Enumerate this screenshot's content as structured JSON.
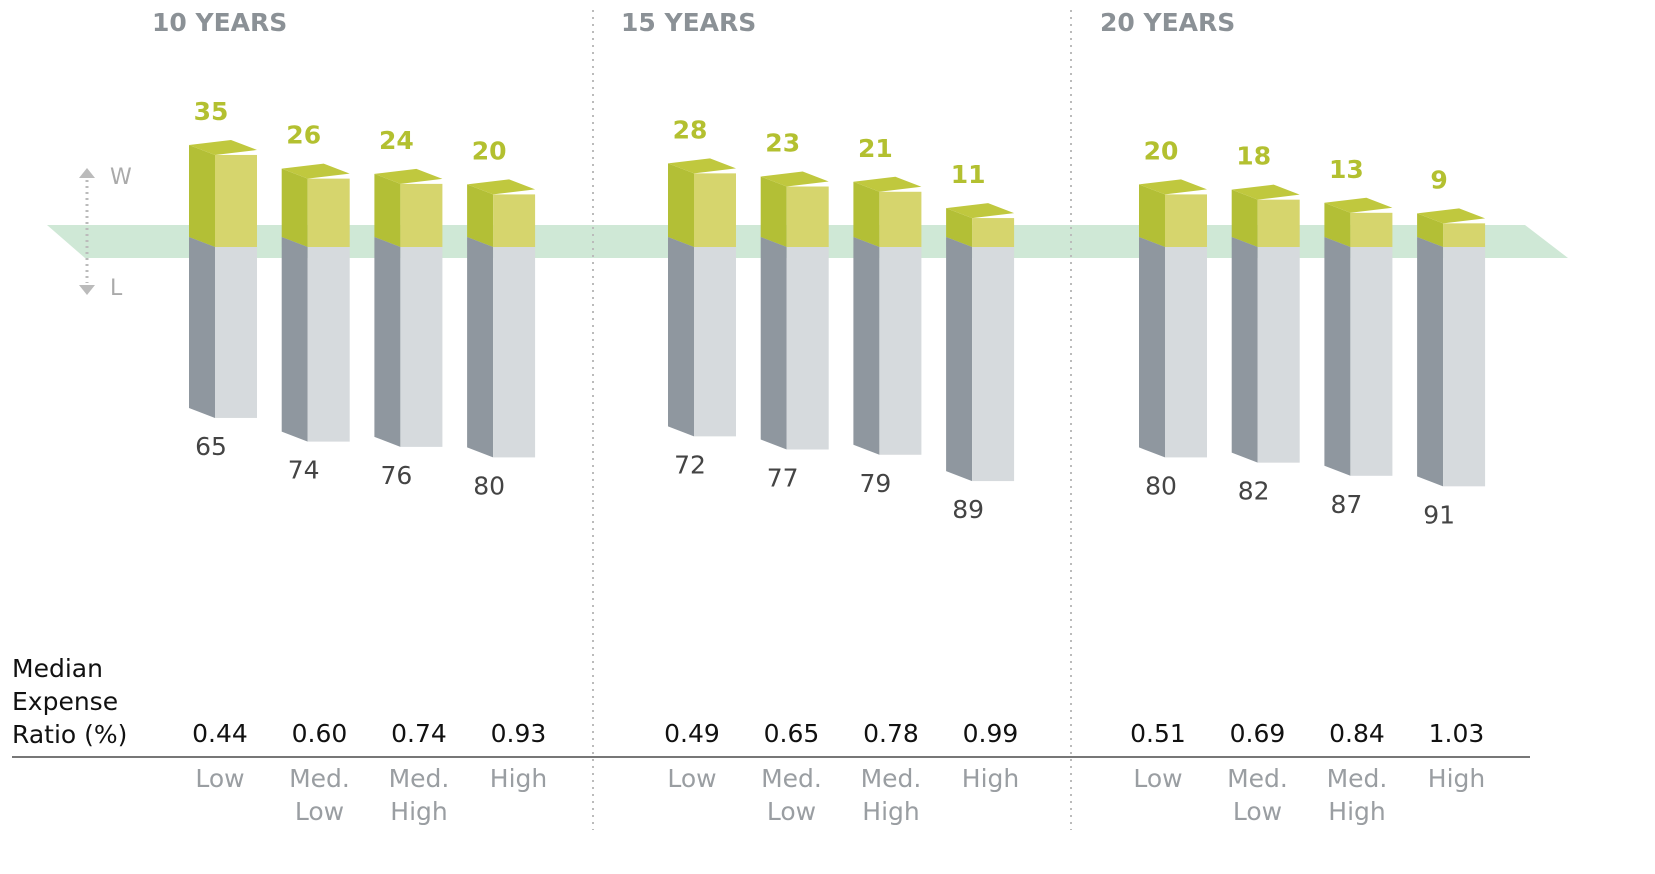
{
  "chart_data": [
    {
      "type": "bar3d",
      "title": "10 YEARS",
      "row_label": "Median Expense Ratio (%)",
      "categories": [
        "Low",
        "Med. Low",
        "Med. High",
        "High"
      ],
      "series": [
        {
          "name": "W",
          "color": "#d6d56d",
          "values": [
            35,
            26,
            24,
            20
          ]
        },
        {
          "name": "L",
          "color": "#d6dadd",
          "values": [
            65,
            74,
            76,
            80
          ]
        }
      ],
      "expense_ratio": {
        "values": [
          0.44,
          0.6,
          0.74,
          0.93
        ],
        "value_labels": [
          "0.44",
          "0.60",
          "0.74",
          "0.93"
        ]
      }
    },
    {
      "type": "bar3d",
      "title": "15 YEARS",
      "categories": [
        "Low",
        "Med. Low",
        "Med. High",
        "High"
      ],
      "series": [
        {
          "color": "#d6d56d",
          "values": [
            28,
            23,
            21,
            11
          ]
        },
        {
          "color": "#d6dadd",
          "values": [
            72,
            77,
            79,
            89
          ]
        }
      ],
      "expense_ratio": {
        "values": [
          0.49,
          0.65,
          0.78,
          0.99
        ],
        "value_labels": [
          "0.49",
          "0.65",
          "0.78",
          "0.99"
        ]
      }
    },
    {
      "type": "bar3d",
      "title": "20 YEARS",
      "categories": [
        "Low",
        "Med. Low",
        "Med. High",
        "High"
      ],
      "series": [
        {
          "color": "#d6d56d",
          "values": [
            20,
            18,
            13,
            9
          ]
        },
        {
          "color": "#d6dadd",
          "values": [
            80,
            82,
            87,
            91
          ]
        }
      ],
      "expense_ratio": {
        "values": [
          0.51,
          0.69,
          0.84,
          1.03
        ],
        "value_labels": [
          "0.51",
          "0.69",
          "0.84",
          "1.03"
        ]
      }
    }
  ]
}
